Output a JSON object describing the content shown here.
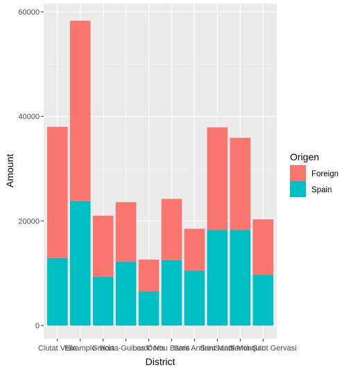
{
  "colors": {
    "panel_background": "#EBEBEB",
    "grid_major": "#FFFFFF",
    "grid_minor": "#F5F5F5",
    "foreign": "#F8766D",
    "spain": "#00BFC4"
  },
  "chart_data": {
    "type": "bar",
    "stacked": true,
    "xlabel": "District",
    "ylabel": "Amount",
    "ylim": [
      0,
      60000
    ],
    "yticks": [
      0,
      20000,
      40000,
      60000
    ],
    "ytick_labels": [
      "0",
      "20000",
      "40000",
      "60000"
    ],
    "grid": true,
    "legend_position": "right",
    "legend": {
      "title": "Origen",
      "entries": [
        "Foreign",
        "Spain"
      ]
    },
    "categories": [
      "Ciutat Vella",
      "Eixample",
      "Gràcia",
      "Horta-Guinardó",
      "Les Corts",
      "Nou Barris",
      "Sant Andreu",
      "Sant Martí",
      "Sants-Montjuïc",
      "Sarrià-Sant Gervasi"
    ],
    "series": [
      {
        "name": "Spain",
        "values": [
          12900,
          23800,
          9300,
          12200,
          6500,
          12500,
          10500,
          18300,
          18300,
          9700
        ]
      },
      {
        "name": "Foreign",
        "values": [
          25100,
          34500,
          11700,
          11400,
          6100,
          11700,
          8000,
          19600,
          17600,
          10600
        ]
      }
    ]
  }
}
